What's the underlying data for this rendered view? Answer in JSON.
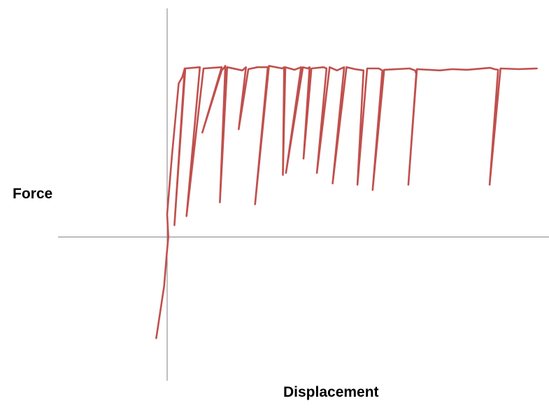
{
  "chart_data": {
    "type": "line",
    "title": "",
    "xlabel": "Displacement",
    "ylabel": "Force",
    "grid": false,
    "legend": "none",
    "xlim": [
      -1.8,
      6.3
    ],
    "ylim": [
      -2.2,
      3.5
    ],
    "colors": {
      "series": "#c0504d",
      "axis": "#7f7f7f"
    },
    "series": [
      {
        "x": [
          -0.18,
          -0.05,
          -0.01,
          0.02,
          0.0,
          0.08,
          0.19,
          0.25,
          0.29,
          0.12,
          0.3,
          0.54,
          0.32,
          0.6,
          0.9,
          0.58,
          0.9,
          0.93,
          0.96,
          0.87,
          0.99,
          1.24,
          1.3,
          1.18,
          1.34,
          1.49,
          1.56,
          1.66,
          1.45,
          1.68,
          1.9,
          1.93,
          1.91,
          1.95,
          2.1,
          2.21,
          1.96,
          2.24,
          2.32,
          2.35,
          2.25,
          2.38,
          2.58,
          2.63,
          2.47,
          2.68,
          2.8,
          2.92,
          2.73,
          2.96,
          3.1,
          3.24,
          3.14,
          3.3,
          3.49,
          3.55,
          3.39,
          3.58,
          4.0,
          4.09,
          4.11,
          3.98,
          4.12,
          4.5,
          4.7,
          4.95,
          5.33,
          5.4,
          5.46,
          5.32,
          5.5,
          5.8,
          6.1
        ],
        "y": [
          -1.55,
          -0.75,
          -0.3,
          0.0,
          0.35,
          1.25,
          2.35,
          2.45,
          2.58,
          0.18,
          2.58,
          2.6,
          0.32,
          2.58,
          2.6,
          1.6,
          2.55,
          2.58,
          2.62,
          0.53,
          2.6,
          2.55,
          2.6,
          1.65,
          2.57,
          2.6,
          2.6,
          2.6,
          0.5,
          2.62,
          2.58,
          2.6,
          0.95,
          2.6,
          2.56,
          2.6,
          0.98,
          2.6,
          2.58,
          2.6,
          1.2,
          2.58,
          2.6,
          2.58,
          0.98,
          2.6,
          2.55,
          2.6,
          0.82,
          2.6,
          2.57,
          2.55,
          0.8,
          2.58,
          2.58,
          2.55,
          0.72,
          2.56,
          2.58,
          2.55,
          2.5,
          0.8,
          2.57,
          2.55,
          2.57,
          2.56,
          2.59,
          2.57,
          2.56,
          0.8,
          2.58,
          2.57,
          2.58
        ]
      }
    ]
  }
}
